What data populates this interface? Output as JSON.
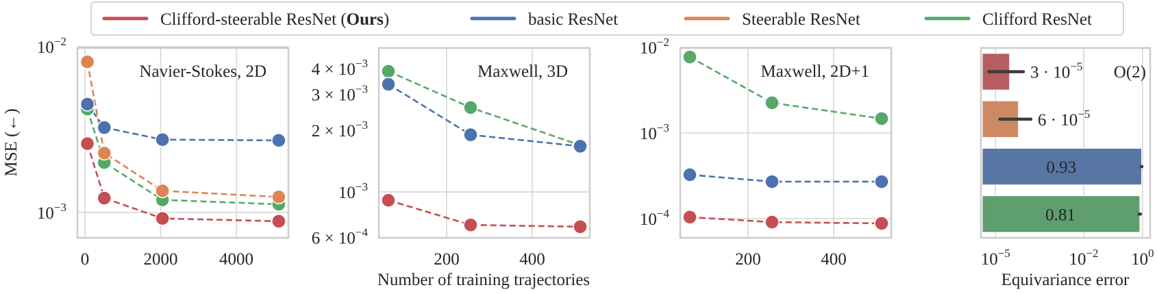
{
  "legend": {
    "items": [
      {
        "label": "Clifford-steerable ResNet (Ours)",
        "bold": "Ours",
        "color": "#c44e52"
      },
      {
        "label": "basic ResNet",
        "color": "#4c72b0"
      },
      {
        "label": "Steerable ResNet",
        "color": "#dd8452"
      },
      {
        "label": "Clifford ResNet",
        "color": "#55a868"
      }
    ]
  },
  "shared_xlabel": "Number of training trajectories",
  "chart_data": [
    {
      "type": "line",
      "title": "Navier-Stokes, 2D",
      "ylabel": "MSE (←)",
      "yscale": "log",
      "ylim": [
        0.000703,
        0.00982
      ],
      "xlim": [
        -199,
        5375
      ],
      "grid": true,
      "x": [
        64,
        512,
        2048,
        5120
      ],
      "xticks": [
        {
          "v": 0,
          "label": "0"
        },
        {
          "v": 2000,
          "label": "2000"
        },
        {
          "v": 4000,
          "label": "4000"
        }
      ],
      "yticks": [
        {
          "v": 0.01,
          "base": "10",
          "exp": "−2",
          "grid": true
        },
        {
          "v": 0.001,
          "base": "10",
          "exp": "−3",
          "grid": true
        }
      ],
      "series": [
        {
          "name": "Clifford ResNet",
          "color": "#55a868",
          "values": [
            0.0042,
            0.002,
            0.00119,
            0.00112
          ]
        },
        {
          "name": "Steerable ResNet",
          "color": "#dd8452",
          "values": [
            0.0081,
            0.00228,
            0.00135,
            0.00124
          ]
        },
        {
          "name": "basic ResNet",
          "color": "#4c72b0",
          "values": [
            0.0045,
            0.00325,
            0.00275,
            0.00272
          ]
        },
        {
          "name": "Clifford-steerable ResNet (Ours)",
          "color": "#c44e52",
          "values": [
            0.0026,
            0.00122,
            0.00092,
            0.000885
          ]
        }
      ]
    },
    {
      "type": "line",
      "title": "Maxwell, 3D",
      "yscale": "log",
      "ylim": [
        0.000597,
        0.00504
      ],
      "xlim": [
        41.6,
        534.4
      ],
      "grid": true,
      "x": [
        64,
        256,
        512
      ],
      "xticks": [
        {
          "v": 200,
          "label": "200"
        },
        {
          "v": 400,
          "label": "400"
        }
      ],
      "yticks": [
        {
          "v": 0.004,
          "base": "4 × 10",
          "exp": "−3",
          "grid": false
        },
        {
          "v": 0.003,
          "base": "3 × 10",
          "exp": "−3",
          "grid": false
        },
        {
          "v": 0.002,
          "base": "2 × 10",
          "exp": "−3",
          "grid": false
        },
        {
          "v": 0.001,
          "base": "10",
          "exp": "−3",
          "grid": true
        },
        {
          "v": 0.0006,
          "base": "6 × 10",
          "exp": "−4",
          "grid": false
        }
      ],
      "series": [
        {
          "name": "Clifford ResNet",
          "color": "#55a868",
          "values": [
            0.00388,
            0.00258,
            0.00169
          ]
        },
        {
          "name": "basic ResNet",
          "color": "#4c72b0",
          "values": [
            0.00335,
            0.0019,
            0.00167
          ]
        },
        {
          "name": "Clifford-steerable ResNet (Ours)",
          "color": "#c44e52",
          "values": [
            0.00091,
            0.00069,
            0.000676
          ]
        }
      ]
    },
    {
      "type": "line",
      "title": "Maxwell, 2D+1",
      "yscale": "log",
      "ylim": [
        5.97e-05,
        0.00982
      ],
      "xlim": [
        41.6,
        534.4
      ],
      "grid": true,
      "x": [
        64,
        256,
        512
      ],
      "xticks": [
        {
          "v": 200,
          "label": "200"
        },
        {
          "v": 400,
          "label": "400"
        }
      ],
      "yticks": [
        {
          "v": 0.01,
          "base": "10",
          "exp": "−2",
          "grid": true
        },
        {
          "v": 0.001,
          "base": "10",
          "exp": "−3",
          "grid": true
        },
        {
          "v": 0.0001,
          "base": "10",
          "exp": "−4",
          "grid": true
        }
      ],
      "series": [
        {
          "name": "Clifford ResNet",
          "color": "#55a868",
          "values": [
            0.0077,
            0.00225,
            0.00147
          ]
        },
        {
          "name": "basic ResNet",
          "color": "#4c72b0",
          "values": [
            0.000325,
            0.00027,
            0.00027
          ]
        },
        {
          "name": "Clifford-steerable ResNet (Ours)",
          "color": "#c44e52",
          "values": [
            0.000104,
            9.1e-05,
            8.8e-05
          ]
        }
      ]
    },
    {
      "type": "bar",
      "orientation": "horizontal",
      "xlabel": "Equivariance error",
      "annotation": "O(2)",
      "xscale": "log",
      "xlim": [
        3.2e-06,
        1.82
      ],
      "grid": true,
      "xticks": [
        {
          "v": 1e-05,
          "base": "10",
          "exp": "−5"
        },
        {
          "v": 0.01,
          "base": "10",
          "exp": "−2"
        },
        {
          "v": 1,
          "base": "10",
          "exp": "0"
        }
      ],
      "categories": [
        "Clifford-steerable ResNet (Ours)",
        "Steerable ResNet",
        "basic ResNet",
        "Clifford ResNet"
      ],
      "values": [
        3e-05,
        6e-05,
        0.93,
        0.81
      ],
      "errors": [
        [
          5.9e-06,
          8.9e-05
        ],
        [
          1.4e-05,
          0.00016
        ],
        [
          0.9,
          0.96
        ],
        [
          0.76,
          0.86
        ]
      ],
      "colors": [
        "#b55d60",
        "#cc8963",
        "#5975a4",
        "#5f9e6e"
      ],
      "value_labels": [
        {
          "base": "3 · 10",
          "exp": "−5",
          "inside": false
        },
        {
          "base": "6 · 10",
          "exp": "−5",
          "inside": false
        },
        {
          "base": "0.93",
          "exp": "",
          "inside": true
        },
        {
          "base": "0.81",
          "exp": "",
          "inside": true
        }
      ]
    }
  ]
}
